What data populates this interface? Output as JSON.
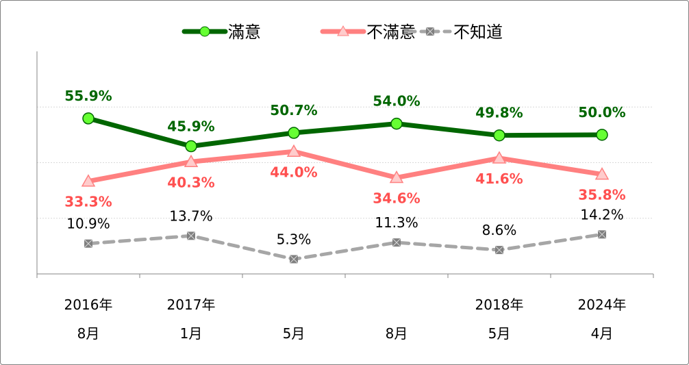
{
  "chart_data": {
    "type": "line",
    "categories": [
      {
        "year": "2016年",
        "month": "8月"
      },
      {
        "year": "2017年",
        "month": "1月"
      },
      {
        "year": "",
        "month": "5月"
      },
      {
        "year": "",
        "month": "8月"
      },
      {
        "year": "2018年",
        "month": "5月"
      },
      {
        "year": "2024年",
        "month": "4月"
      }
    ],
    "series": [
      {
        "name": "滿意",
        "values": [
          55.9,
          45.9,
          50.7,
          54.0,
          49.8,
          50.0
        ],
        "labels": [
          "55.9%",
          "45.9%",
          "50.7%",
          "54.0%",
          "49.8%",
          "50.0%"
        ],
        "color": "#006600",
        "marker": "circle",
        "marker_fill": "#66ff33",
        "label_color": "#006600",
        "dashed": false
      },
      {
        "name": "不滿意",
        "values": [
          33.3,
          40.3,
          44.0,
          34.6,
          41.6,
          35.8
        ],
        "labels": [
          "33.3%",
          "40.3%",
          "44.0%",
          "34.6%",
          "41.6%",
          "35.8%"
        ],
        "color": "#ff8080",
        "marker": "triangle",
        "marker_fill": "#ffcccc",
        "label_color": "#ff5050",
        "dashed": false
      },
      {
        "name": "不知道",
        "values": [
          10.9,
          13.7,
          5.3,
          11.3,
          8.6,
          14.2
        ],
        "labels": [
          "10.9%",
          "13.7%",
          "5.3%",
          "11.3%",
          "8.6%",
          "14.2%"
        ],
        "color": "#a6a6a6",
        "marker": "x-square",
        "marker_fill": "#808080",
        "label_color": "#000000",
        "dashed": true
      }
    ],
    "ylim": [
      0,
      80
    ],
    "grid": true,
    "legend": "top-center",
    "xlabel": "",
    "ylabel": ""
  }
}
